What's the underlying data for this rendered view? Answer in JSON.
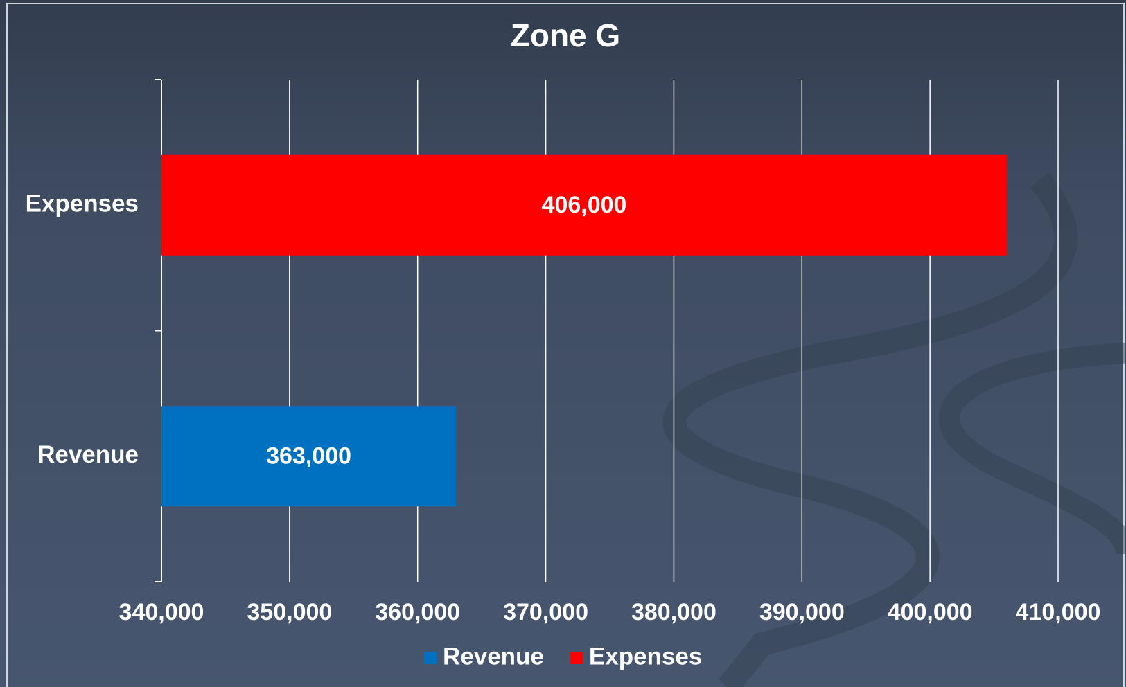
{
  "chart_data": {
    "type": "barh",
    "title": "Zone G",
    "categories": [
      "Revenue",
      "Expenses"
    ],
    "series": [
      {
        "name": "Revenue",
        "color": "#0070c0",
        "values": [
          363000,
          null
        ],
        "value_labels": [
          "363,000",
          null
        ]
      },
      {
        "name": "Expenses",
        "color": "#ff0000",
        "values": [
          null,
          406000
        ],
        "value_labels": [
          null,
          "406,000"
        ]
      }
    ],
    "xlim": [
      340000,
      410000
    ],
    "xticks": [
      {
        "value": 340000,
        "label": "340,000"
      },
      {
        "value": 350000,
        "label": "350,000"
      },
      {
        "value": 360000,
        "label": "360,000"
      },
      {
        "value": 370000,
        "label": "370,000"
      },
      {
        "value": 380000,
        "label": "380,000"
      },
      {
        "value": 390000,
        "label": "390,000"
      },
      {
        "value": 400000,
        "label": "400,000"
      },
      {
        "value": 410000,
        "label": "410,000"
      }
    ],
    "grid": true,
    "legend": "bottom"
  }
}
